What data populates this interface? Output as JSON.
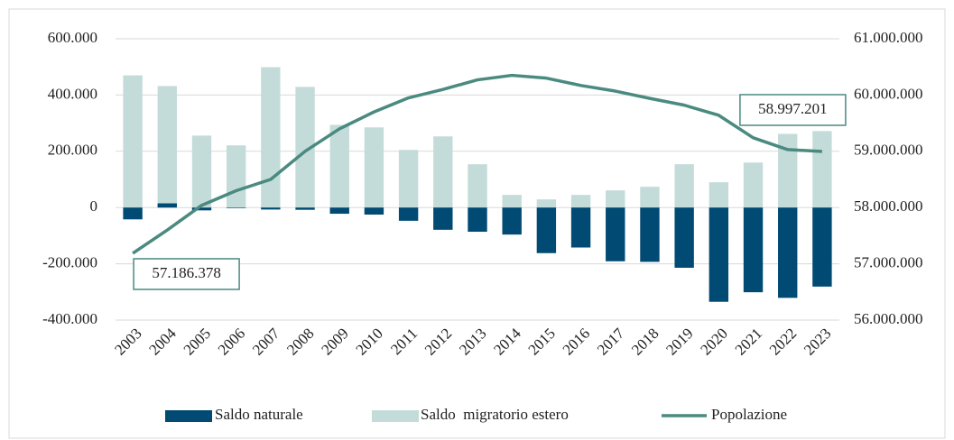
{
  "chart_data": {
    "type": "bar_line",
    "categories": [
      "2003",
      "2004",
      "2005",
      "2006",
      "2007",
      "2008",
      "2009",
      "2010",
      "2011",
      "2012",
      "2013",
      "2014",
      "2015",
      "2016",
      "2017",
      "2018",
      "2019",
      "2020",
      "2021",
      "2022",
      "2023"
    ],
    "series": [
      {
        "name": "Saldo naturale",
        "color": "#004a73",
        "type": "bar",
        "values": [
          -42000,
          15000,
          -10000,
          -2000,
          -7000,
          -8000,
          -22000,
          -25000,
          -47000,
          -79000,
          -86000,
          -96000,
          -162000,
          -142000,
          -191000,
          -193000,
          -214000,
          -335000,
          -301000,
          -321000,
          -281000
        ]
      },
      {
        "name": "Saldo  migratorio estero",
        "color": "#c4dcd9",
        "type": "bar",
        "values": [
          470000,
          432000,
          256000,
          221000,
          499000,
          429000,
          294000,
          285000,
          205000,
          253000,
          154000,
          45000,
          29000,
          45000,
          61000,
          74000,
          154000,
          90000,
          160000,
          262000,
          272000
        ]
      },
      {
        "name": "Popolazione",
        "color": "#4a8a80",
        "type": "line",
        "axis": "y2",
        "values": [
          57186378,
          57600000,
          58040000,
          58300000,
          58500000,
          59000000,
          59400000,
          59700000,
          59950000,
          60100000,
          60270000,
          60350000,
          60300000,
          60170000,
          60070000,
          59940000,
          59820000,
          59640000,
          59240000,
          59030000,
          58997201
        ]
      }
    ],
    "annotations": [
      {
        "text": "57.186.378",
        "index": 0
      },
      {
        "text": "58.997.201",
        "index": 20
      }
    ],
    "ylim": [
      -400000,
      600000
    ],
    "yticks": [
      {
        "value": -400000,
        "label": "-400.000"
      },
      {
        "value": -200000,
        "label": "-200.000"
      },
      0,
      {
        "value": 200000,
        "label": "200.000"
      },
      {
        "value": 400000,
        "label": "400.000"
      },
      {
        "value": 600000,
        "label": "600.000"
      }
    ],
    "y2lim": [
      56000000,
      61000000
    ],
    "y2ticks": [
      {
        "value": 56000000,
        "label": "56.000.000"
      },
      {
        "value": 57000000,
        "label": "57.000.000"
      },
      {
        "value": 58000000,
        "label": "58.000.000"
      },
      {
        "value": 59000000,
        "label": "59.000.000"
      },
      {
        "value": 60000000,
        "label": "60.000.000"
      },
      {
        "value": 61000000,
        "label": "61.000.000"
      }
    ],
    "grid": true,
    "legend": "bottom"
  }
}
